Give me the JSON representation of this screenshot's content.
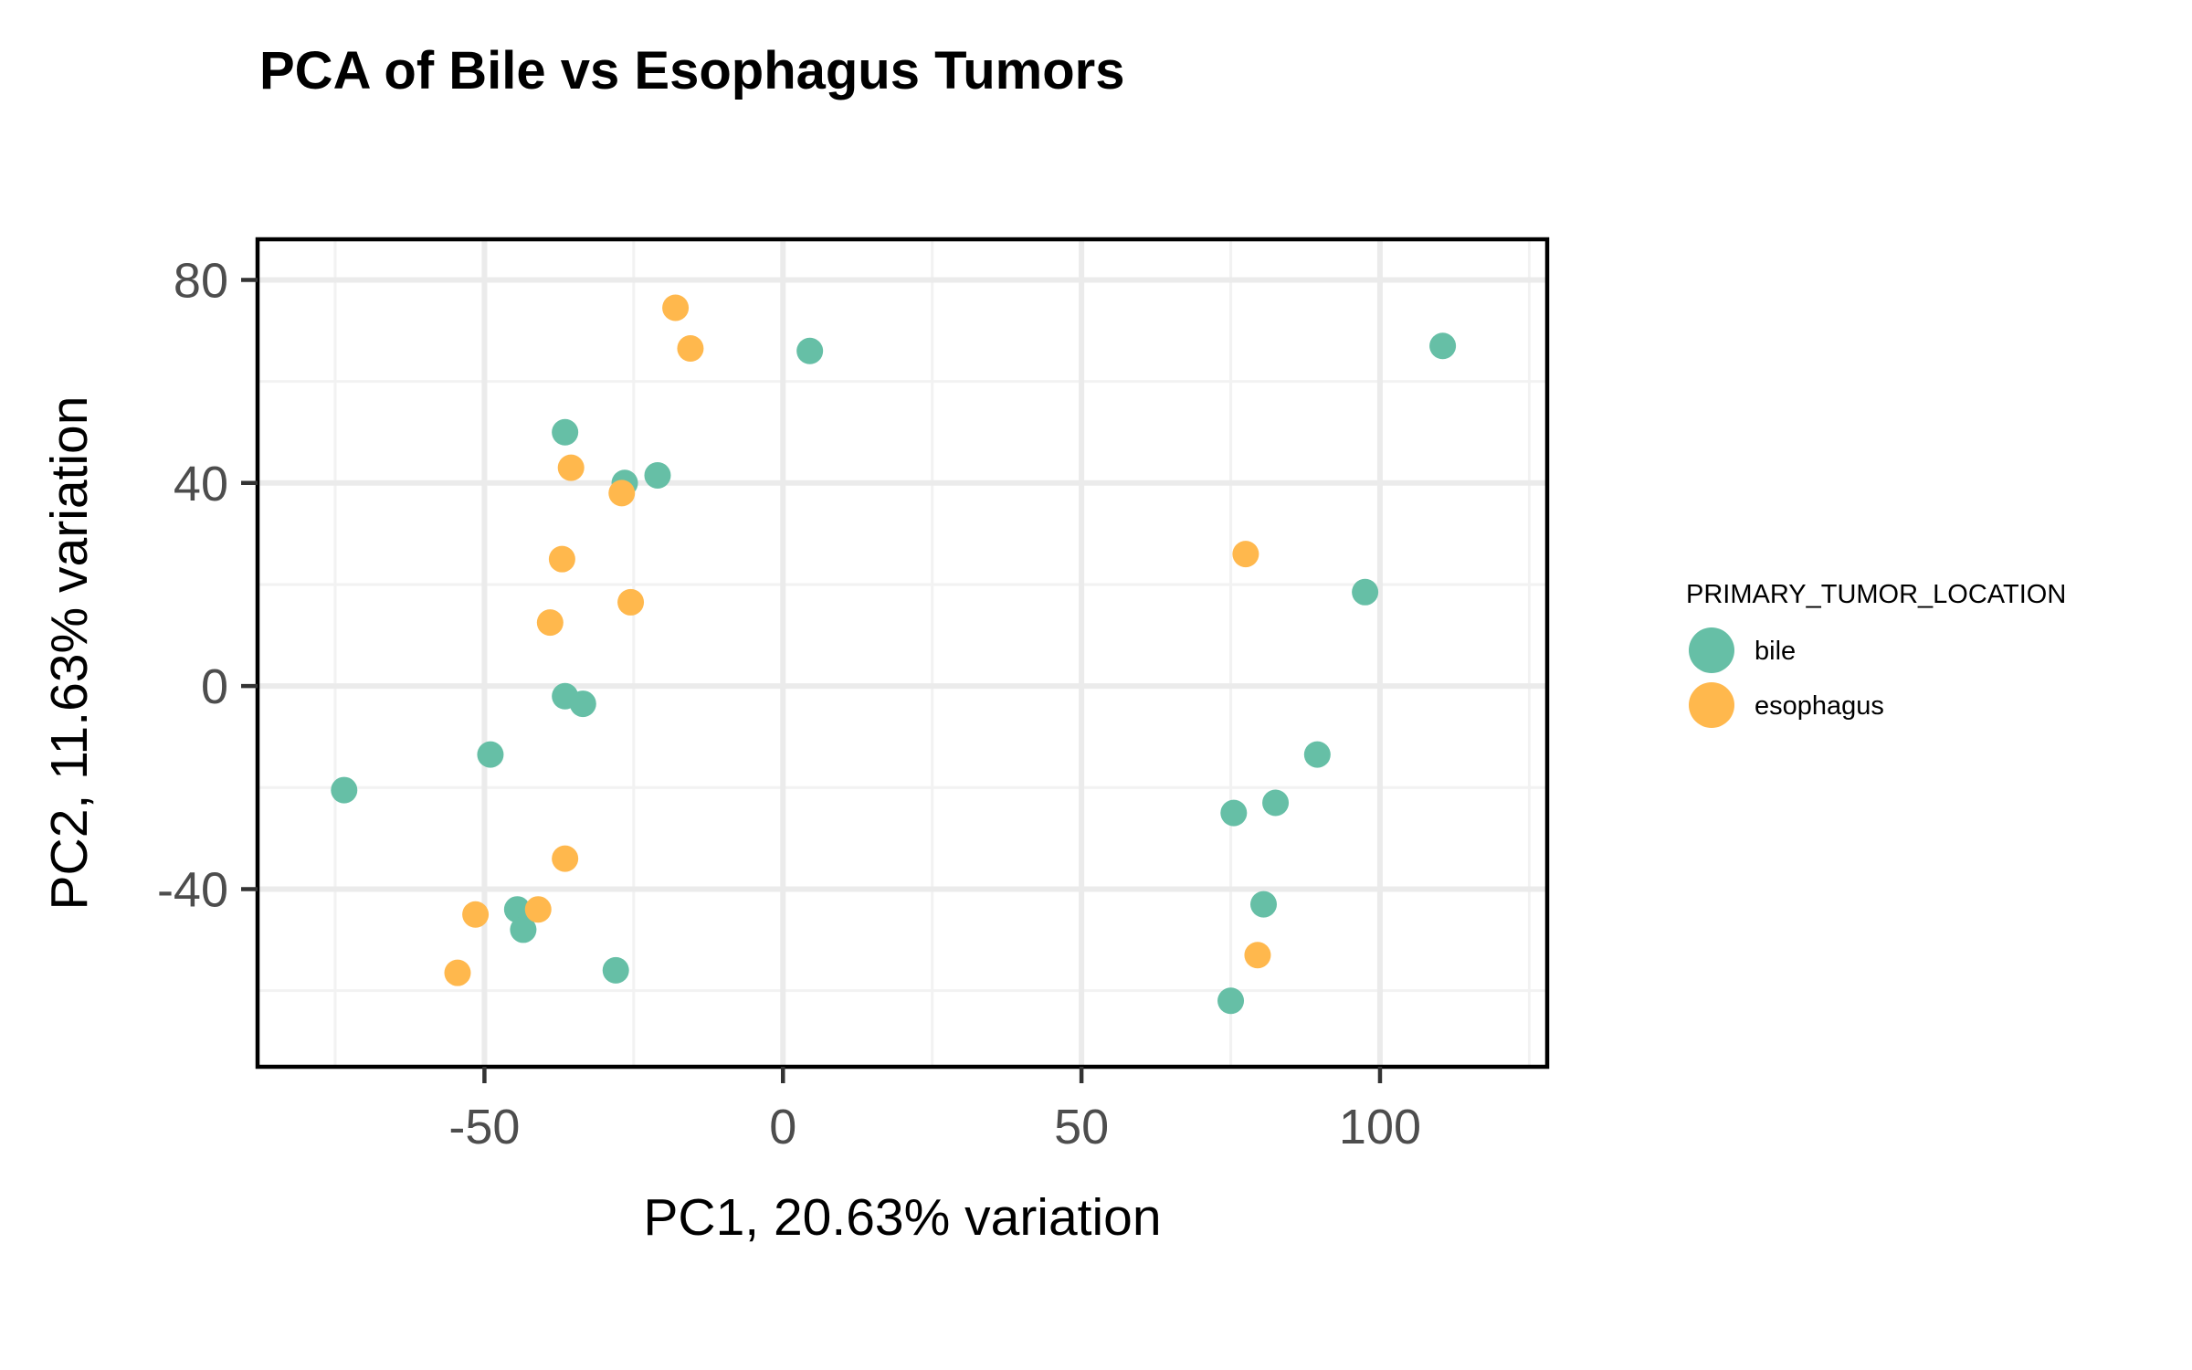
{
  "colors": {
    "bile": "#66BFA6",
    "esophagus": "#FFB84D",
    "grid_major": "#EBEBEB",
    "grid_minor": "#F2F2F2",
    "panel_border": "#000000",
    "tick_text": "#4D4D4D"
  },
  "chart_data": {
    "type": "scatter",
    "title": "PCA of Bile vs Esophagus Tumors",
    "xlabel": "PC1, 20.63% variation",
    "ylabel": "PC2, 11.63% variation",
    "xlim": [
      -88,
      128
    ],
    "ylim": [
      -75,
      88
    ],
    "x_ticks": [
      -50,
      0,
      50,
      100
    ],
    "x_tick_labels": [
      "-50",
      "0",
      "50",
      "100"
    ],
    "y_ticks": [
      -40,
      0,
      40,
      80
    ],
    "y_tick_labels": [
      "-40",
      "0",
      "40",
      "80"
    ],
    "grid": true,
    "legend_title": "PRIMARY_TUMOR_LOCATION",
    "legend_position": "right",
    "series": [
      {
        "name": "bile",
        "color": "#66BFA6",
        "points": [
          [
            4.5,
            66
          ],
          [
            110.5,
            67
          ],
          [
            -36.5,
            50
          ],
          [
            -26.5,
            40
          ],
          [
            -21,
            41.5
          ],
          [
            97.5,
            18.5
          ],
          [
            -36.5,
            -2
          ],
          [
            -33.5,
            -3.5
          ],
          [
            -49,
            -13.5
          ],
          [
            89.5,
            -13.5
          ],
          [
            -73.5,
            -20.5
          ],
          [
            82.5,
            -23
          ],
          [
            75.5,
            -25
          ],
          [
            80.5,
            -43
          ],
          [
            -44.5,
            -44
          ],
          [
            -43.5,
            -48
          ],
          [
            -28,
            -56
          ],
          [
            75,
            -62
          ]
        ]
      },
      {
        "name": "esophagus",
        "color": "#FFB84D",
        "points": [
          [
            -18,
            74.5
          ],
          [
            -15.5,
            66.5
          ],
          [
            -35.5,
            43
          ],
          [
            -27,
            38
          ],
          [
            -37,
            25
          ],
          [
            77.5,
            26
          ],
          [
            -39,
            12.5
          ],
          [
            -25.5,
            16.5
          ],
          [
            -36.5,
            -34
          ],
          [
            -41,
            -44
          ],
          [
            -51.5,
            -45
          ],
          [
            -54.5,
            -56.5
          ],
          [
            79.5,
            -53
          ]
        ]
      }
    ]
  }
}
